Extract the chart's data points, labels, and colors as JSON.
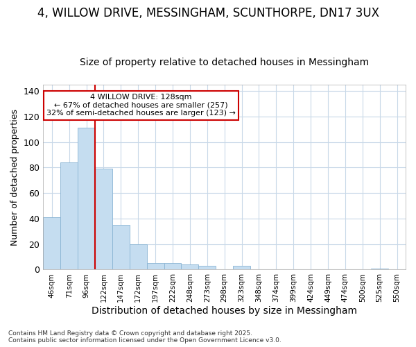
{
  "title1": "4, WILLOW DRIVE, MESSINGHAM, SCUNTHORPE, DN17 3UX",
  "title2": "Size of property relative to detached houses in Messingham",
  "xlabel": "Distribution of detached houses by size in Messingham",
  "ylabel": "Number of detached properties",
  "bar_labels": [
    "46sqm",
    "71sqm",
    "96sqm",
    "122sqm",
    "147sqm",
    "172sqm",
    "197sqm",
    "222sqm",
    "248sqm",
    "273sqm",
    "298sqm",
    "323sqm",
    "348sqm",
    "374sqm",
    "399sqm",
    "424sqm",
    "449sqm",
    "474sqm",
    "500sqm",
    "525sqm",
    "550sqm"
  ],
  "bar_values": [
    41,
    84,
    111,
    79,
    35,
    20,
    5,
    5,
    4,
    3,
    0,
    3,
    0,
    0,
    0,
    0,
    0,
    0,
    0,
    1,
    0
  ],
  "bar_color": "#c5ddf0",
  "bar_edge_color": "#8ab4d4",
  "bg_color": "#ffffff",
  "grid_color": "#c8d8e8",
  "vline_x": 2.5,
  "vline_color": "#cc0000",
  "annotation_line1": "4 WILLOW DRIVE: 128sqm",
  "annotation_line2": "← 67% of detached houses are smaller (257)",
  "annotation_line3": "32% of semi-detached houses are larger (123) →",
  "annotation_box_color": "#cc0000",
  "footer_text": "Contains HM Land Registry data © Crown copyright and database right 2025.\nContains public sector information licensed under the Open Government Licence v3.0.",
  "ylim": [
    0,
    145
  ],
  "yticks": [
    0,
    20,
    40,
    60,
    80,
    100,
    120,
    140
  ],
  "title1_fontsize": 12,
  "title2_fontsize": 10,
  "ylabel_fontsize": 9,
  "xlabel_fontsize": 10
}
